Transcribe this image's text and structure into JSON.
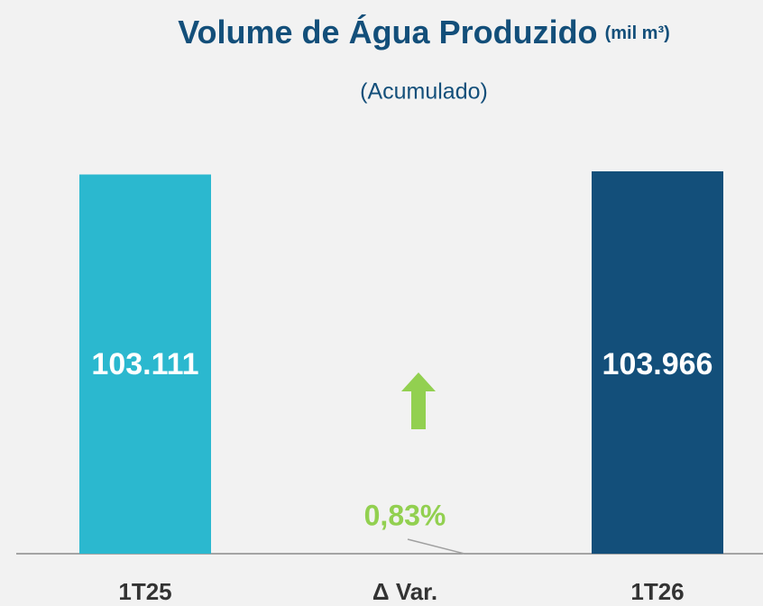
{
  "chart_data": {
    "type": "bar",
    "title": "Volume de Água Produzido",
    "unit": "(mil m³)",
    "subtitle": "(Acumulado)",
    "categories": [
      "1T25",
      "Δ Var.",
      "1T26"
    ],
    "values": [
      103111,
      null,
      103966
    ],
    "value_labels": [
      "103.111",
      null,
      "103.966"
    ],
    "colors": [
      "#2bb8cf",
      null,
      "#134f7a"
    ],
    "variation": {
      "value": 0.83,
      "label": "0,83%",
      "color": "#92d050"
    },
    "ylim": [
      0,
      110000
    ]
  }
}
